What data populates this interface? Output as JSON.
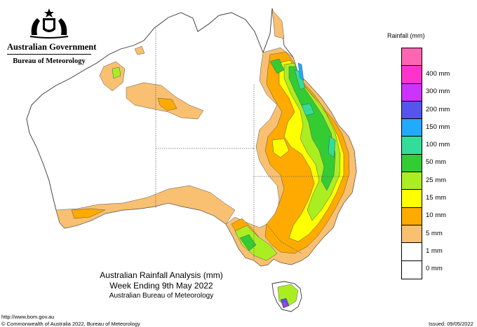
{
  "header": {
    "government": "Australian Government",
    "bureau": "Bureau of Meteorology"
  },
  "map": {
    "region": "Australia",
    "variable": "Rainfall"
  },
  "legend": {
    "title": "Rainfall (mm)",
    "items": [
      {
        "label": "",
        "color": "#ff66b2"
      },
      {
        "label": "400 mm",
        "color": "#ff33cc"
      },
      {
        "label": "300 mm",
        "color": "#cc33ff"
      },
      {
        "label": "200 mm",
        "color": "#5555ee"
      },
      {
        "label": "150 mm",
        "color": "#22aaff"
      },
      {
        "label": "100 mm",
        "color": "#33dd99"
      },
      {
        "label": "50 mm",
        "color": "#33cc33"
      },
      {
        "label": "25 mm",
        "color": "#aaee22"
      },
      {
        "label": "15 mm",
        "color": "#ffff00"
      },
      {
        "label": "10 mm",
        "color": "#ffaa00"
      },
      {
        "label": "5 mm",
        "color": "#f8c070"
      },
      {
        "label": "1 mm",
        "color": "#ffffff"
      },
      {
        "label": "0 mm",
        "color": "#ffffff"
      }
    ]
  },
  "caption": {
    "line1": "Australian Rainfall Analysis (mm)",
    "line2": "Week Ending 9th May 2022",
    "line3": "Australian Bureau of Meteorology"
  },
  "footer": {
    "url": "http://www.bom.gov.au",
    "copyright": "© Commonwealth of Australia 2022, Bureau of Meteorology",
    "issued": "Issued: 09/05/2022"
  }
}
